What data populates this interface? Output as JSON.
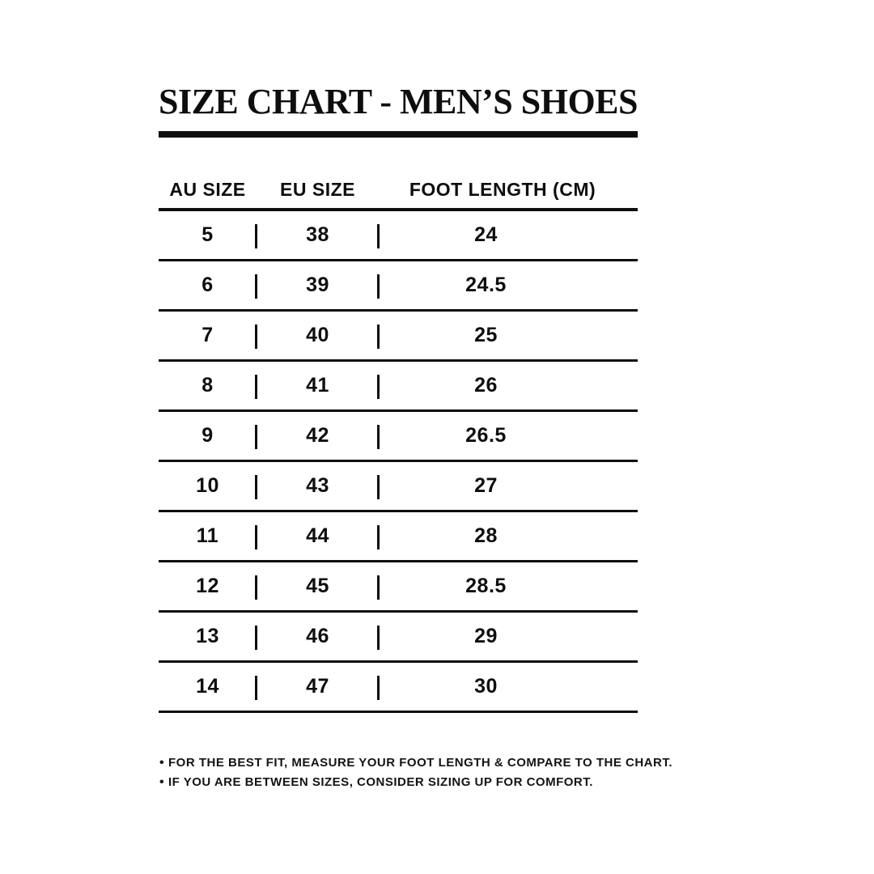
{
  "colors": {
    "ink": "#0e0e0e",
    "background": "#ffffff"
  },
  "title": "SIZE CHART - MEN’S SHOES",
  "table": {
    "headers": [
      "AU SIZE",
      "EU SIZE",
      "FOOT LENGTH (CM)"
    ],
    "rows": [
      {
        "au": "5",
        "eu": "38",
        "cm": "24"
      },
      {
        "au": "6",
        "eu": "39",
        "cm": "24.5"
      },
      {
        "au": "7",
        "eu": "40",
        "cm": "25"
      },
      {
        "au": "8",
        "eu": "41",
        "cm": "26"
      },
      {
        "au": "9",
        "eu": "42",
        "cm": "26.5"
      },
      {
        "au": "10",
        "eu": "43",
        "cm": "27"
      },
      {
        "au": "11",
        "eu": "44",
        "cm": "28"
      },
      {
        "au": "12",
        "eu": "45",
        "cm": "28.5"
      },
      {
        "au": "13",
        "eu": "46",
        "cm": "29"
      },
      {
        "au": "14",
        "eu": "47",
        "cm": "30"
      }
    ]
  },
  "notes_bullet": "•",
  "notes": [
    "FOR THE BEST FIT, MEASURE YOUR FOOT LENGTH & COMPARE TO THE CHART.",
    "IF YOU ARE BETWEEN SIZES, CONSIDER SIZING UP FOR COMFORT."
  ]
}
